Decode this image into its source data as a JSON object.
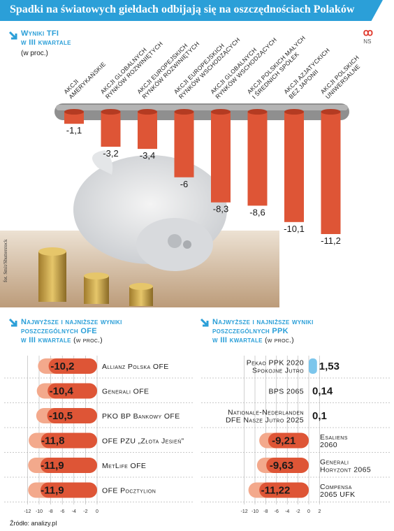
{
  "header": {
    "title": "Spadki na światowych giełdach odbijają się na oszczędnościach Polaków"
  },
  "logo": {
    "mark": "ꝏ",
    "text": "NS"
  },
  "credit": "fot. Smit/Shutterstock",
  "source": "Źródło: analizy.pl",
  "top": {
    "title_line1": "Wyniki TFI",
    "title_line2": "w III kwartale",
    "unit": "(w proc.)"
  },
  "ofe": {
    "title_line1": "Najwyższe i najniższe wyniki",
    "title_line2": "poszczególnych OFE",
    "title_line3": "w III kwartale",
    "unit": "(w proc.)"
  },
  "ppk": {
    "title_line1": "Najwyższe i najniższe wyniki",
    "title_line2": "poszczególnych PPK",
    "title_line3": "w III kwartale",
    "unit": "(w proc.)"
  },
  "colors": {
    "accent": "#2b9fd8",
    "bar": "#de5536",
    "bar_light": "#f3a98c",
    "positive": "#7cc6ec"
  },
  "chart_data": [
    {
      "type": "bar",
      "title": "Wyniki TFI w III kwartale",
      "unit": "(w proc.)",
      "categories": [
        [
          "Akcji",
          "amerykańskie"
        ],
        [
          "Akcji globalnych",
          "rynków rozwiniętych"
        ],
        [
          "Akcji europejskich",
          "rynków rozwiniętych"
        ],
        [
          "Akcji europejskich",
          "rynków wschodzących"
        ],
        [
          "Akcji globalnych",
          "rynków wschodzących"
        ],
        [
          "Akcji polskich małych",
          "i średnich spółek"
        ],
        [
          "Akcji azjatyckich",
          "bez Japonii"
        ],
        [
          "Akcji polskich",
          "uniwersalne"
        ]
      ],
      "values": [
        -1.1,
        -3.2,
        -3.4,
        -6,
        -8.3,
        -8.6,
        -10.1,
        -11.2
      ],
      "value_labels": [
        "-1,1",
        "-3,2",
        "-3,4",
        "-6",
        "-8,3",
        "-8,6",
        "-10,1",
        "-11,2"
      ]
    },
    {
      "type": "bar",
      "orientation": "horizontal",
      "title": "Najwyższe i najniższe wyniki poszczególnych OFE w III kwartale",
      "unit": "(w proc.)",
      "categories": [
        [
          "Allianz Polska OFE"
        ],
        [
          "Generali OFE"
        ],
        [
          "PKO BP Bankowy OFE"
        ],
        [
          "OFE PZU „Złota Jesień”"
        ],
        [
          "MetLife OFE"
        ],
        [
          "OFE Pocztylion"
        ]
      ],
      "values": [
        -10.2,
        -10.4,
        -10.5,
        -11.8,
        -11.9,
        -11.9
      ],
      "value_labels": [
        "-10,2",
        "-10,4",
        "-10,5",
        "-11,8",
        "-11,9",
        "-11,9"
      ],
      "xlim": [
        -12,
        0
      ],
      "ticks": [
        "-12",
        "-10",
        "-8",
        "-6",
        "-4",
        "-2",
        "0"
      ]
    },
    {
      "type": "bar",
      "orientation": "horizontal",
      "title": "Najwyższe i najniższe wyniki poszczególnych PPK w III kwartale",
      "unit": "(w proc.)",
      "categories": [
        [
          "Pekao PPK 2020",
          "Spokojne Jutro"
        ],
        [
          "BPS 2065"
        ],
        [
          "Nationale-Nederlanden",
          "DFE Nasze Jutro 2025"
        ],
        [
          "Esaliens",
          "2060"
        ],
        [
          "Generali",
          "Horyzont 2065"
        ],
        [
          "Compensa",
          "2065 UFK"
        ]
      ],
      "values": [
        1.53,
        0.14,
        0.1,
        -9.21,
        -9.63,
        -11.22
      ],
      "value_labels": [
        "1,53",
        "0,14",
        "0,1",
        "-9,21",
        "-9,63",
        "-11,22"
      ],
      "xlim": [
        -12,
        2
      ],
      "ticks": [
        "-12",
        "-10",
        "-8",
        "-6",
        "-4",
        "-2",
        "0",
        "2"
      ]
    }
  ]
}
